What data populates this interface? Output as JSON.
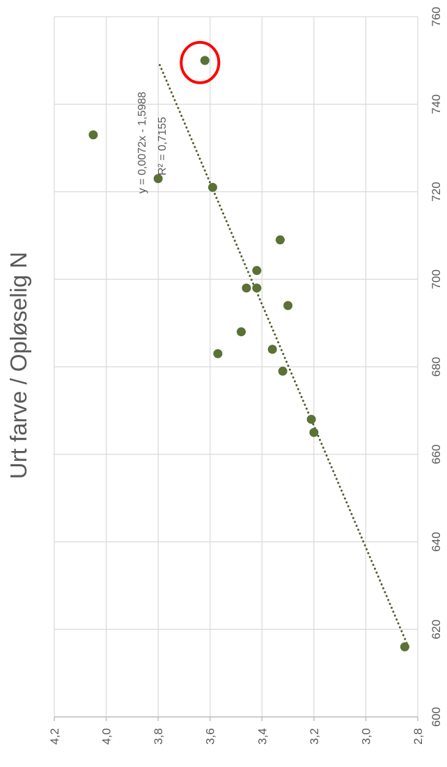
{
  "chart_data": {
    "type": "scatter",
    "title": "Urt farve / Opløselig N",
    "x_ticks": [
      "600",
      "620",
      "640",
      "660",
      "680",
      "700",
      "720",
      "740",
      "760"
    ],
    "y_ticks": [
      "4,2",
      "4,0",
      "3,8",
      "3,6",
      "3,4",
      "3,2",
      "3,0",
      "2,8"
    ],
    "xlim": [
      600,
      760
    ],
    "ylim": [
      2.8,
      4.2
    ],
    "grid": true,
    "points": [
      {
        "x": 750,
        "y": 3.62
      },
      {
        "x": 733,
        "y": 4.05
      },
      {
        "x": 723,
        "y": 3.8
      },
      {
        "x": 721,
        "y": 3.59
      },
      {
        "x": 709,
        "y": 3.33
      },
      {
        "x": 702,
        "y": 3.42
      },
      {
        "x": 698,
        "y": 3.46
      },
      {
        "x": 698,
        "y": 3.42
      },
      {
        "x": 694,
        "y": 3.3
      },
      {
        "x": 688,
        "y": 3.48
      },
      {
        "x": 684,
        "y": 3.36
      },
      {
        "x": 683,
        "y": 3.57
      },
      {
        "x": 679,
        "y": 3.32
      },
      {
        "x": 668,
        "y": 3.21
      },
      {
        "x": 665,
        "y": 3.2
      },
      {
        "x": 616,
        "y": 2.85
      }
    ],
    "highlighted_point": {
      "x": 750,
      "y": 3.62
    },
    "trendline": {
      "type": "linear",
      "x_range": [
        616,
        749
      ],
      "equation": "y = 0,0072x - 1,5988",
      "r_squared": "R² = 0,7155"
    },
    "colors": {
      "marker": "#5b7136",
      "trendline": "#4d5e2c",
      "highlight": "#ff0000",
      "grid": "#d9d9d9",
      "text": "#595959"
    }
  }
}
